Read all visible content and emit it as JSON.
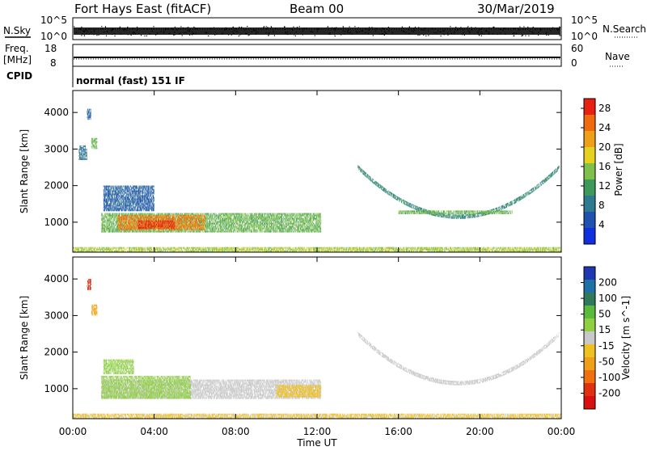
{
  "header": {
    "station": "Fort Hays East (fitACF)",
    "beam": "Beam 00",
    "date": "30/Mar/2019"
  },
  "noise_panel": {
    "left_label": "N.Sky",
    "right_label": "N.Search",
    "left_ticks": [
      "10^5",
      "10^0"
    ],
    "right_ticks": [
      "10^5",
      "10^0"
    ]
  },
  "freq_panel": {
    "left_label_1": "Freq.",
    "left_label_2": "[MHz]",
    "right_label": "Nave",
    "left_ticks": [
      "18",
      "8"
    ],
    "right_ticks": [
      "60",
      "0"
    ]
  },
  "cpid": {
    "label": "CPID",
    "value": "normal (fast) 151 IF"
  },
  "colors": {
    "power_scale": [
      "#1030e0",
      "#2050b0",
      "#2e7a90",
      "#3e9a5a",
      "#7ec04a",
      "#e6d21e",
      "#f0a018",
      "#f06a10",
      "#e82010"
    ],
    "velocity_scale": [
      "#1d38b0",
      "#2070a8",
      "#2e7a5a",
      "#5aba3c",
      "#8ed040",
      "#c8c8c8",
      "#f0c020",
      "#f0a018",
      "#f07010",
      "#e03010",
      "#d81010"
    ]
  },
  "chart_data": [
    {
      "type": "heatmap",
      "title": "",
      "parameter": "Power",
      "ylabel": "Slant Range [km]",
      "xlabel": "Time UT",
      "x_ticks": [
        "00:00",
        "04:00",
        "08:00",
        "12:00",
        "16:00",
        "20:00",
        "00:00"
      ],
      "x_range_hours": [
        0,
        24
      ],
      "ylim": [
        180,
        4600
      ],
      "y_ticks": [
        1000,
        2000,
        3000,
        4000
      ],
      "colorbar": {
        "label": "Power [dB]",
        "ticks": [
          4,
          8,
          12,
          16,
          20,
          24,
          28
        ],
        "range": [
          0,
          30
        ]
      },
      "regions": [
        {
          "t0": 1.4,
          "t1": 12.2,
          "r0": 720,
          "r1": 1250,
          "value": 14
        },
        {
          "t0": 2.2,
          "t1": 6.5,
          "r0": 780,
          "r1": 1200,
          "value": 24
        },
        {
          "t0": 3.2,
          "t1": 5.0,
          "r0": 820,
          "r1": 1050,
          "value": 28
        },
        {
          "t0": 1.5,
          "t1": 4.0,
          "r0": 1300,
          "r1": 2000,
          "value": 6
        },
        {
          "t0": 0.3,
          "t1": 0.7,
          "r0": 2700,
          "r1": 3100,
          "value": 8
        },
        {
          "t0": 0.9,
          "t1": 1.2,
          "r0": 3000,
          "r1": 3300,
          "value": 14
        },
        {
          "t0": 0.7,
          "t1": 0.9,
          "r0": 3800,
          "r1": 4100,
          "value": 6
        },
        {
          "t0": 14.0,
          "t1": 23.9,
          "r0": 1150,
          "r1": 2500,
          "value": 10,
          "shape": "arc"
        },
        {
          "t0": 16.0,
          "t1": 21.6,
          "r0": 1220,
          "r1": 1320,
          "value": 14
        },
        {
          "t0": 0.0,
          "t1": 24.0,
          "r0": 190,
          "r1": 320,
          "value": 16
        }
      ]
    },
    {
      "type": "heatmap",
      "title": "",
      "parameter": "Velocity",
      "ylabel": "Slant Range [km]",
      "xlabel": "Time UT",
      "x_ticks": [
        "00:00",
        "04:00",
        "08:00",
        "12:00",
        "16:00",
        "20:00",
        "00:00"
      ],
      "x_range_hours": [
        0,
        24
      ],
      "ylim": [
        180,
        4600
      ],
      "y_ticks": [
        1000,
        2000,
        3000,
        4000
      ],
      "colorbar": {
        "label": "Velocity [m s^-1]",
        "ticks": [
          200,
          100,
          50,
          15,
          -15,
          -50,
          -100,
          -200
        ],
        "range": [
          -250,
          250
        ]
      },
      "regions": [
        {
          "t0": 1.4,
          "t1": 12.2,
          "r0": 720,
          "r1": 1250,
          "value": 0
        },
        {
          "t0": 1.4,
          "t1": 5.8,
          "r0": 720,
          "r1": 1350,
          "value": 35
        },
        {
          "t0": 10.0,
          "t1": 12.2,
          "r0": 760,
          "r1": 1100,
          "value": -35
        },
        {
          "t0": 1.5,
          "t1": 3.0,
          "r0": 1400,
          "r1": 1800,
          "value": 35
        },
        {
          "t0": 0.7,
          "t1": 0.9,
          "r0": 3700,
          "r1": 4000,
          "value": -200
        },
        {
          "t0": 0.9,
          "t1": 1.2,
          "r0": 3000,
          "r1": 3300,
          "value": -80
        },
        {
          "t0": 14.0,
          "t1": 23.9,
          "r0": 1150,
          "r1": 2500,
          "value": 0,
          "shape": "arc"
        },
        {
          "t0": 0.0,
          "t1": 24.0,
          "r0": 190,
          "r1": 320,
          "value": -30
        }
      ]
    }
  ]
}
